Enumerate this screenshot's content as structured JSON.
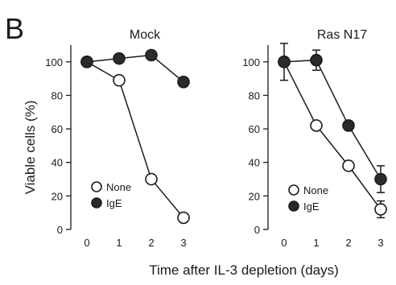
{
  "figure": {
    "panel_letter": "B",
    "ylabel": "Viable cells (%)",
    "xlabel": "Time after IL-3 depletion (days)"
  },
  "chart_data": [
    {
      "type": "line",
      "title": "Mock",
      "x": [
        0,
        1,
        2,
        3
      ],
      "xticks": [
        "0",
        "1",
        "2",
        "3"
      ],
      "ylim": [
        0,
        110
      ],
      "yticks": [
        "0",
        "20",
        "40",
        "60",
        "80",
        "100"
      ],
      "legend_position": "bottom-left",
      "series": [
        {
          "name": "None",
          "marker": "open-circle",
          "values": [
            100,
            89,
            30,
            7
          ],
          "errors": [
            0,
            0,
            0,
            0
          ]
        },
        {
          "name": "IgE",
          "marker": "filled-circle",
          "values": [
            100,
            102,
            104,
            88
          ],
          "errors": [
            0,
            0,
            0,
            0
          ]
        }
      ]
    },
    {
      "type": "line",
      "title": "Ras N17",
      "x": [
        0,
        1,
        2,
        3
      ],
      "xticks": [
        "0",
        "1",
        "2",
        "3"
      ],
      "ylim": [
        0,
        110
      ],
      "yticks": [
        "0",
        "20",
        "40",
        "60",
        "80",
        "100"
      ],
      "legend_position": "bottom-left",
      "series": [
        {
          "name": "None",
          "marker": "open-circle",
          "values": [
            100,
            62,
            38,
            12
          ],
          "errors": [
            11,
            0,
            0,
            5
          ]
        },
        {
          "name": "IgE",
          "marker": "filled-circle",
          "values": [
            100,
            101,
            62,
            30
          ],
          "errors": [
            0,
            6,
            0,
            8
          ]
        }
      ]
    }
  ]
}
